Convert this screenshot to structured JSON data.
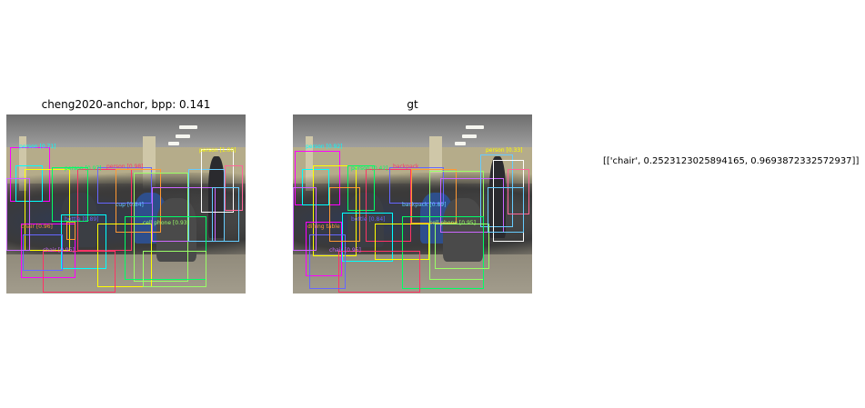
{
  "panels": [
    {
      "title": "cheng2020-anchor, bpp: 0.141",
      "labels": [
        "person [0.71]",
        "person [1.00]",
        "person [0.97]",
        "person [0.98]",
        "bottle [0.89]",
        "chair [0.96]",
        "cell phone [0.93]",
        "chair [0.95]",
        "cup [0.84]"
      ]
    },
    {
      "title": "gt",
      "labels": [
        "person [0.92]",
        "person [0.33]",
        "person [0.42]",
        "backpack",
        "bottle [0.84]",
        "dining table",
        "cell phone [0.95]",
        "chair [0.95]",
        "backpack [0.89]"
      ]
    }
  ],
  "side_text": "[['chair', 0.2523123025894165, 0.9693872332572937]]",
  "colors": {
    "palette": [
      "#ff00ff",
      "#00ffff",
      "#ffff00",
      "#00ff66",
      "#ff3366",
      "#6666ff",
      "#ff9933",
      "#99ff66",
      "#cc66ff",
      "#66ccff",
      "#ffffff",
      "#ff6699"
    ]
  }
}
